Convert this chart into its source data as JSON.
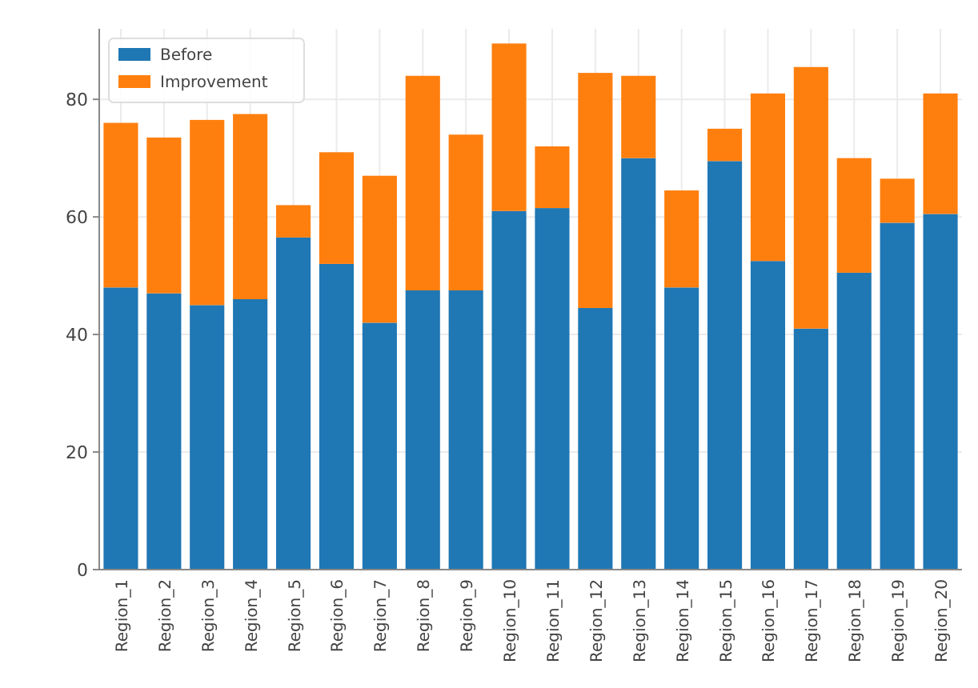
{
  "chart_data": {
    "type": "bar",
    "stacked": true,
    "categories": [
      "Region_1",
      "Region_2",
      "Region_3",
      "Region_4",
      "Region_5",
      "Region_6",
      "Region_7",
      "Region_8",
      "Region_9",
      "Region_10",
      "Region_11",
      "Region_12",
      "Region_13",
      "Region_14",
      "Region_15",
      "Region_16",
      "Region_17",
      "Region_18",
      "Region_19",
      "Region_20"
    ],
    "series": [
      {
        "name": "Before",
        "color": "#1f77b4",
        "values": [
          48,
          47,
          45,
          46,
          56.5,
          52,
          42,
          47.5,
          47.5,
          61,
          61.5,
          44.5,
          70,
          48,
          69.5,
          52.5,
          41,
          50.5,
          59,
          60.5
        ]
      },
      {
        "name": "Improvement",
        "color": "#ff7f0e",
        "values": [
          28,
          26.5,
          31.5,
          31.5,
          5.5,
          19,
          25,
          36.5,
          26.5,
          28.5,
          10.5,
          40,
          14,
          16.5,
          5.5,
          28.5,
          44.5,
          19.5,
          7.5,
          20.5
        ]
      }
    ],
    "ylim": [
      0,
      92
    ],
    "yticks": [
      0,
      20,
      40,
      60,
      80
    ],
    "grid": true,
    "legend": "top left"
  }
}
